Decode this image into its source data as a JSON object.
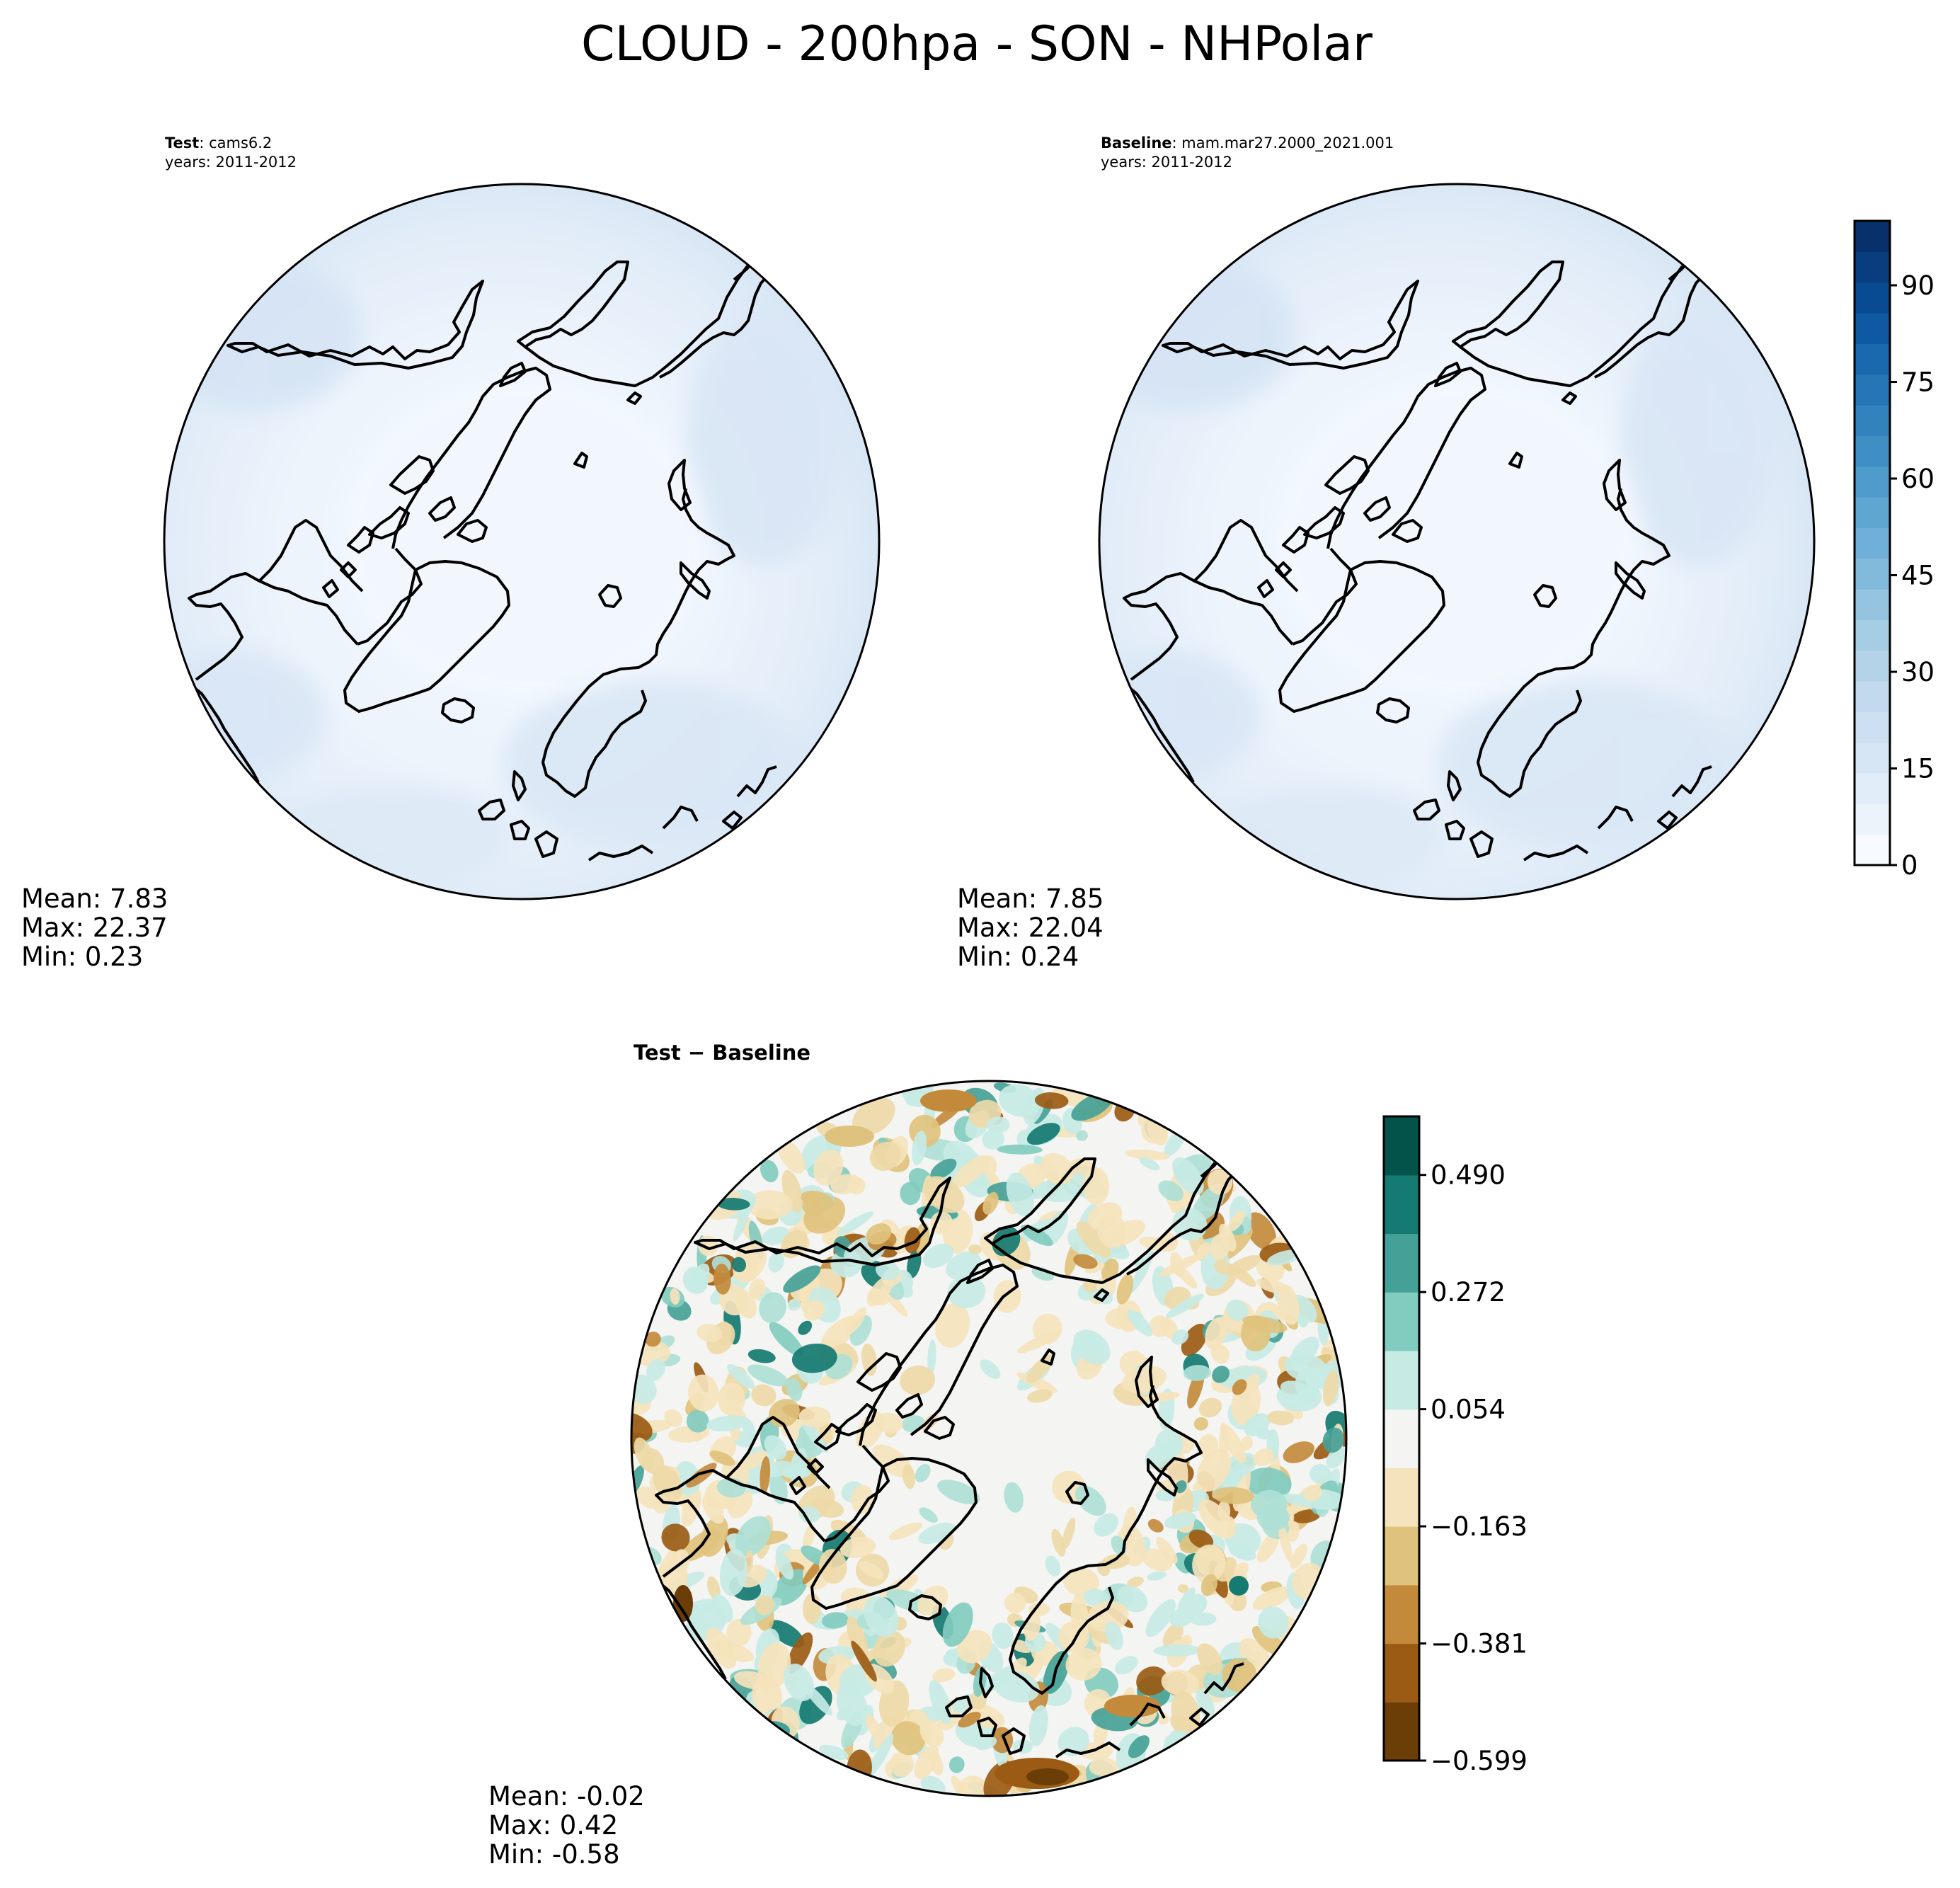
{
  "title": "CLOUD - 200hpa - SON - NHPolar",
  "panels": [
    {
      "id": "test",
      "header_label": "Test",
      "header_value": ": cams6.2",
      "years": "years: 2011-2012",
      "mean": "Mean:  7.83",
      "max": "Max: 22.37",
      "min": "Min:  0.23"
    },
    {
      "id": "baseline",
      "header_label": "Baseline",
      "header_value": ": mam.mar27.2000_2021.001",
      "years": "years: 2011-2012",
      "mean": "Mean:  7.85",
      "max": "Max: 22.04",
      "min": "Min:  0.24"
    },
    {
      "id": "diff",
      "header_label": "Test − Baseline",
      "mean": "Mean: -0.02",
      "max": "Max:  0.42",
      "min": "Min: -0.58"
    }
  ],
  "chart_data": [
    {
      "type": "heatmap",
      "projection": "north-polar-stereographic",
      "field": "cloud fraction (Test)",
      "colormap": "Blues",
      "levels": [
        0,
        100
      ],
      "stats": {
        "mean": 7.83,
        "max": 22.37,
        "min": 0.23
      }
    },
    {
      "type": "heatmap",
      "projection": "north-polar-stereographic",
      "field": "cloud fraction (Baseline)",
      "colormap": "Blues",
      "stats": {
        "mean": 7.85,
        "max": 22.04,
        "min": 0.24
      }
    },
    {
      "type": "heatmap",
      "projection": "north-polar-stereographic",
      "field": "Test − Baseline",
      "colormap": "BrBG",
      "stats": {
        "mean": -0.02,
        "max": 0.42,
        "min": -0.58
      }
    }
  ],
  "colorbar_main": {
    "ticks": [
      "0",
      "15",
      "30",
      "45",
      "60",
      "75",
      "90"
    ],
    "tick_values": [
      0,
      15,
      30,
      45,
      60,
      75,
      90
    ],
    "range": [
      0,
      100
    ],
    "colors": [
      "#f7fbff",
      "#ebf3fb",
      "#e1edf8",
      "#d7e6f5",
      "#cddff2",
      "#c2d9ee",
      "#b4d3e9",
      "#a5cde3",
      "#94c4df",
      "#82badb",
      "#70b0d8",
      "#5fa6d1",
      "#4f9bcb",
      "#3f8fc5",
      "#3282be",
      "#2575b7",
      "#1a68ae",
      "#0e59a2",
      "#094b92",
      "#083e7f",
      "#08306b"
    ]
  },
  "colorbar_diff": {
    "ticks": [
      "0.490",
      "0.272",
      "0.054",
      "−0.163",
      "−0.381",
      "−0.599"
    ],
    "tick_values": [
      0.49,
      0.272,
      0.054,
      -0.163,
      -0.381,
      -0.599
    ],
    "range": [
      -0.599,
      0.599
    ],
    "colors": [
      "#6b3e08",
      "#9b5b14",
      "#c38a3c",
      "#dfc27d",
      "#f4e3bc",
      "#f4f4f2",
      "#c7eae5",
      "#82cbbf",
      "#45a197",
      "#157a71",
      "#03534a"
    ]
  },
  "colors": {
    "field_light": "#f0f6fd",
    "field_mid": "#dbe8f6",
    "field_dark": "#cbdcf0",
    "diff_neutral": "#f4f4f2"
  }
}
